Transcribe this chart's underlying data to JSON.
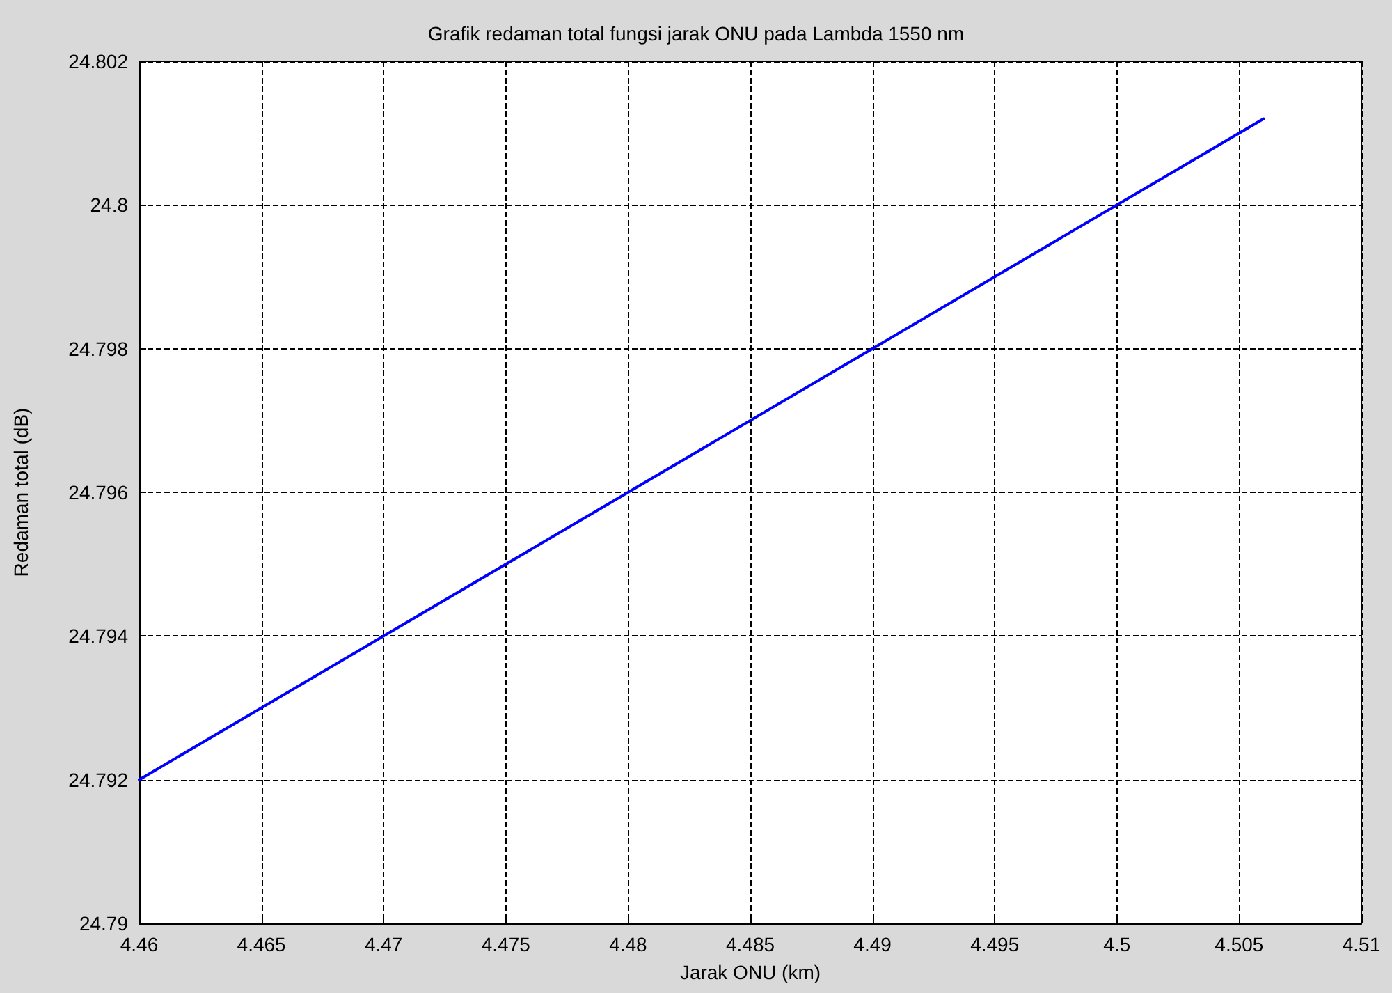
{
  "chart_data": {
    "type": "line",
    "title": "Grafik redaman total fungsi jarak ONU pada Lambda 1550 nm",
    "xlabel": "Jarak ONU (km)",
    "ylabel": "Redaman total (dB)",
    "x": [
      4.46,
      4.47,
      4.48,
      4.49,
      4.5,
      4.506
    ],
    "series": [
      {
        "color": "#0000ff",
        "values": [
          24.792,
          24.794,
          24.796,
          24.798,
          24.8,
          24.8012
        ]
      }
    ],
    "xlim": [
      4.46,
      4.51
    ],
    "xticks": [
      4.46,
      4.465,
      4.47,
      4.475,
      4.48,
      4.485,
      4.49,
      4.495,
      4.5,
      4.505,
      4.51
    ],
    "ylim": [
      24.79,
      24.802
    ],
    "yticks": [
      24.79,
      24.792,
      24.794,
      24.796,
      24.798,
      24.8,
      24.802
    ],
    "grid": true,
    "marker": "none",
    "line_style": "solid"
  }
}
